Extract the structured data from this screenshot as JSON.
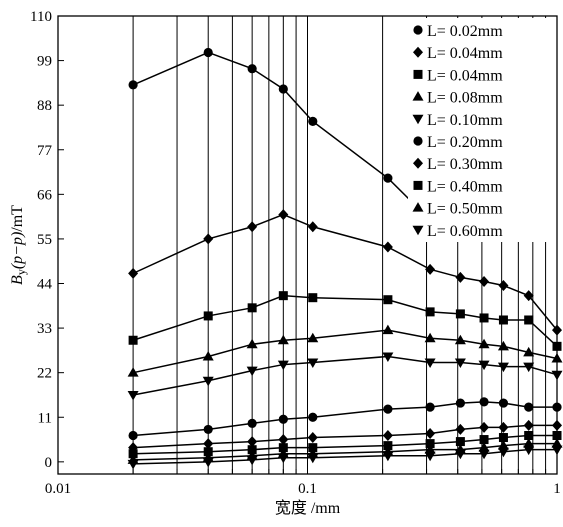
{
  "chart_data": {
    "type": "line",
    "title": "",
    "xlabel": "宽度 /mm",
    "ylabel_parts": [
      "B",
      "y",
      "(p−p)",
      "/mT"
    ],
    "x_scale": "log",
    "xlim": [
      0.01,
      1
    ],
    "ylim": [
      -3,
      110
    ],
    "x_ticks": [
      0.01,
      0.1,
      1
    ],
    "x_tick_labels": [
      "0.01",
      "0.1",
      "1"
    ],
    "y_ticks": [
      0,
      11,
      22,
      33,
      44,
      55,
      66,
      77,
      88,
      99,
      110
    ],
    "y_tick_labels": [
      "0",
      "11",
      "22",
      "33",
      "44",
      "55",
      "66",
      "77",
      "88",
      "99",
      "110"
    ],
    "grid": {
      "vertical": true,
      "horizontal": false
    },
    "legend_position": "top-right",
    "series": [
      {
        "name": "L= 0.02mm",
        "marker": "circle",
        "x": [
          0.02,
          0.04,
          0.06,
          0.08,
          0.105,
          0.21,
          0.33
        ],
        "y": [
          93,
          101,
          97,
          92,
          84,
          70,
          58
        ]
      },
      {
        "name": "L= 0.04mm",
        "marker": "diamond",
        "x": [
          0.02,
          0.04,
          0.06,
          0.08,
          0.105,
          0.21,
          0.31,
          0.41,
          0.51,
          0.61,
          0.77,
          1.0
        ],
        "y": [
          46.5,
          55,
          58,
          61,
          58,
          53,
          47.5,
          45.5,
          44.5,
          43.5,
          41,
          32.5
        ]
      },
      {
        "name": "L= 0.04mm",
        "marker": "square",
        "x": [
          0.02,
          0.04,
          0.06,
          0.08,
          0.105,
          0.21,
          0.31,
          0.41,
          0.51,
          0.61,
          0.77,
          1.0
        ],
        "y": [
          30,
          36,
          38,
          41,
          40.5,
          40,
          37,
          36.5,
          35.5,
          35,
          35,
          28.5
        ]
      },
      {
        "name": "L= 0.08mm",
        "marker": "triangle-up",
        "x": [
          0.02,
          0.04,
          0.06,
          0.08,
          0.105,
          0.21,
          0.31,
          0.41,
          0.51,
          0.61,
          0.77,
          1.0
        ],
        "y": [
          22,
          26,
          29,
          30,
          30.5,
          32.5,
          30.5,
          30,
          29,
          28.5,
          27,
          25.5
        ]
      },
      {
        "name": "L= 0.10mm",
        "marker": "triangle-down",
        "x": [
          0.02,
          0.04,
          0.06,
          0.08,
          0.105,
          0.21,
          0.31,
          0.41,
          0.51,
          0.61,
          0.77,
          1.0
        ],
        "y": [
          16.5,
          20,
          22.5,
          24,
          24.5,
          26,
          24.5,
          24.5,
          24,
          23.5,
          23.5,
          21.5
        ]
      },
      {
        "name": "L= 0.20mm",
        "marker": "circle",
        "x": [
          0.02,
          0.04,
          0.06,
          0.08,
          0.105,
          0.21,
          0.31,
          0.41,
          0.51,
          0.61,
          0.77,
          1.0
        ],
        "y": [
          6.5,
          8,
          9.5,
          10.5,
          11,
          13,
          13.5,
          14.5,
          14.8,
          14.5,
          13.5,
          13.5
        ]
      },
      {
        "name": "L= 0.30mm",
        "marker": "diamond",
        "x": [
          0.02,
          0.04,
          0.06,
          0.08,
          0.105,
          0.21,
          0.31,
          0.41,
          0.51,
          0.61,
          0.77,
          1.0
        ],
        "y": [
          3.5,
          4.5,
          5,
          5.5,
          6,
          6.5,
          7,
          8,
          8.5,
          8.5,
          9,
          9
        ]
      },
      {
        "name": "L= 0.40mm",
        "marker": "square",
        "x": [
          0.02,
          0.04,
          0.06,
          0.08,
          0.105,
          0.21,
          0.31,
          0.41,
          0.51,
          0.61,
          0.77,
          1.0
        ],
        "y": [
          2,
          2.5,
          3,
          3.5,
          3.5,
          4,
          4.5,
          5,
          5.5,
          6,
          6.5,
          6.5
        ]
      },
      {
        "name": "L= 0.50mm",
        "marker": "triangle-up",
        "x": [
          0.02,
          0.04,
          0.06,
          0.08,
          0.105,
          0.21,
          0.31,
          0.41,
          0.51,
          0.61,
          0.77,
          1.0
        ],
        "y": [
          0.5,
          1,
          1.5,
          2,
          2,
          2.5,
          3,
          3,
          3.5,
          4,
          4.5,
          4.5
        ]
      },
      {
        "name": "L= 0.60mm",
        "marker": "triangle-down",
        "x": [
          0.02,
          0.04,
          0.06,
          0.08,
          0.105,
          0.21,
          0.31,
          0.41,
          0.51,
          0.61,
          0.77,
          1.0
        ],
        "y": [
          -0.5,
          0,
          0.5,
          1,
          1,
          1.5,
          1.5,
          2,
          2,
          2.5,
          3,
          3
        ]
      }
    ]
  }
}
